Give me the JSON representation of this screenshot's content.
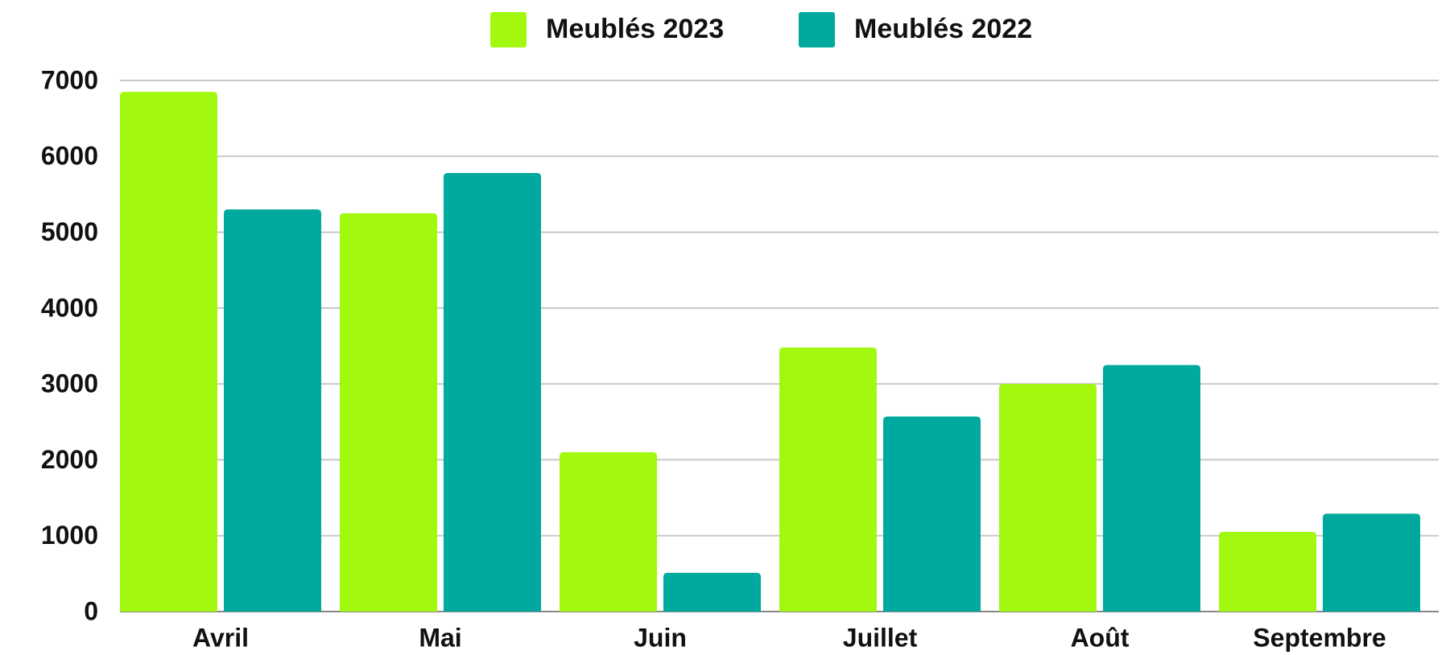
{
  "chart_data": {
    "type": "bar",
    "categories": [
      "Avril",
      "Mai",
      "Juin",
      "Juillet",
      "Août",
      "Septembre"
    ],
    "series": [
      {
        "name": "Meublés 2023",
        "color": "#a2f90f",
        "values": [
          6850,
          5250,
          2100,
          3480,
          3000,
          1050
        ]
      },
      {
        "name": "Meublés 2022",
        "color": "#00a99d",
        "values": [
          5300,
          5780,
          510,
          2570,
          3250,
          1290
        ]
      }
    ],
    "ylim": [
      0,
      7000
    ],
    "yticks": [
      0,
      1000,
      2000,
      3000,
      4000,
      5000,
      6000,
      7000
    ],
    "grid": true,
    "legend": "top"
  }
}
